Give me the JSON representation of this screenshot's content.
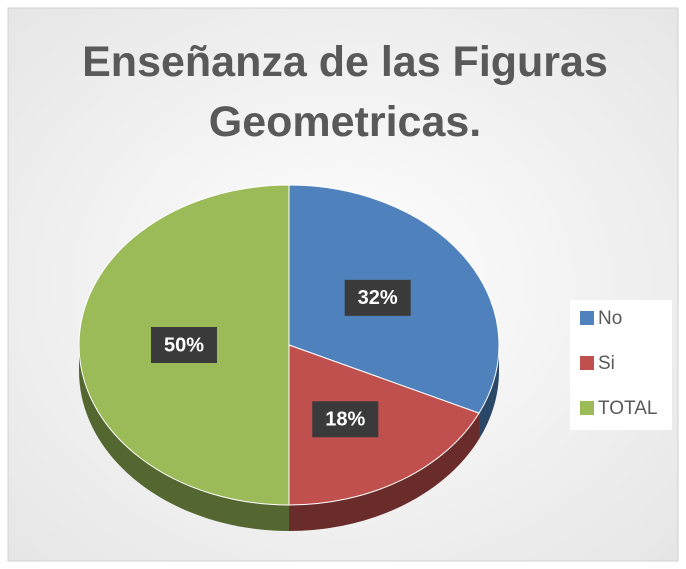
{
  "chart_data": {
    "type": "pie",
    "title": "Enseñanza de las Figuras Geometricas.",
    "categories": [
      "No",
      "Si",
      "TOTAL"
    ],
    "values": [
      32,
      18,
      50
    ],
    "value_labels": [
      "32%",
      "18%",
      "50%"
    ],
    "colors": [
      "#4f81bd",
      "#c0504d",
      "#9bbb59"
    ],
    "legend": "right"
  }
}
